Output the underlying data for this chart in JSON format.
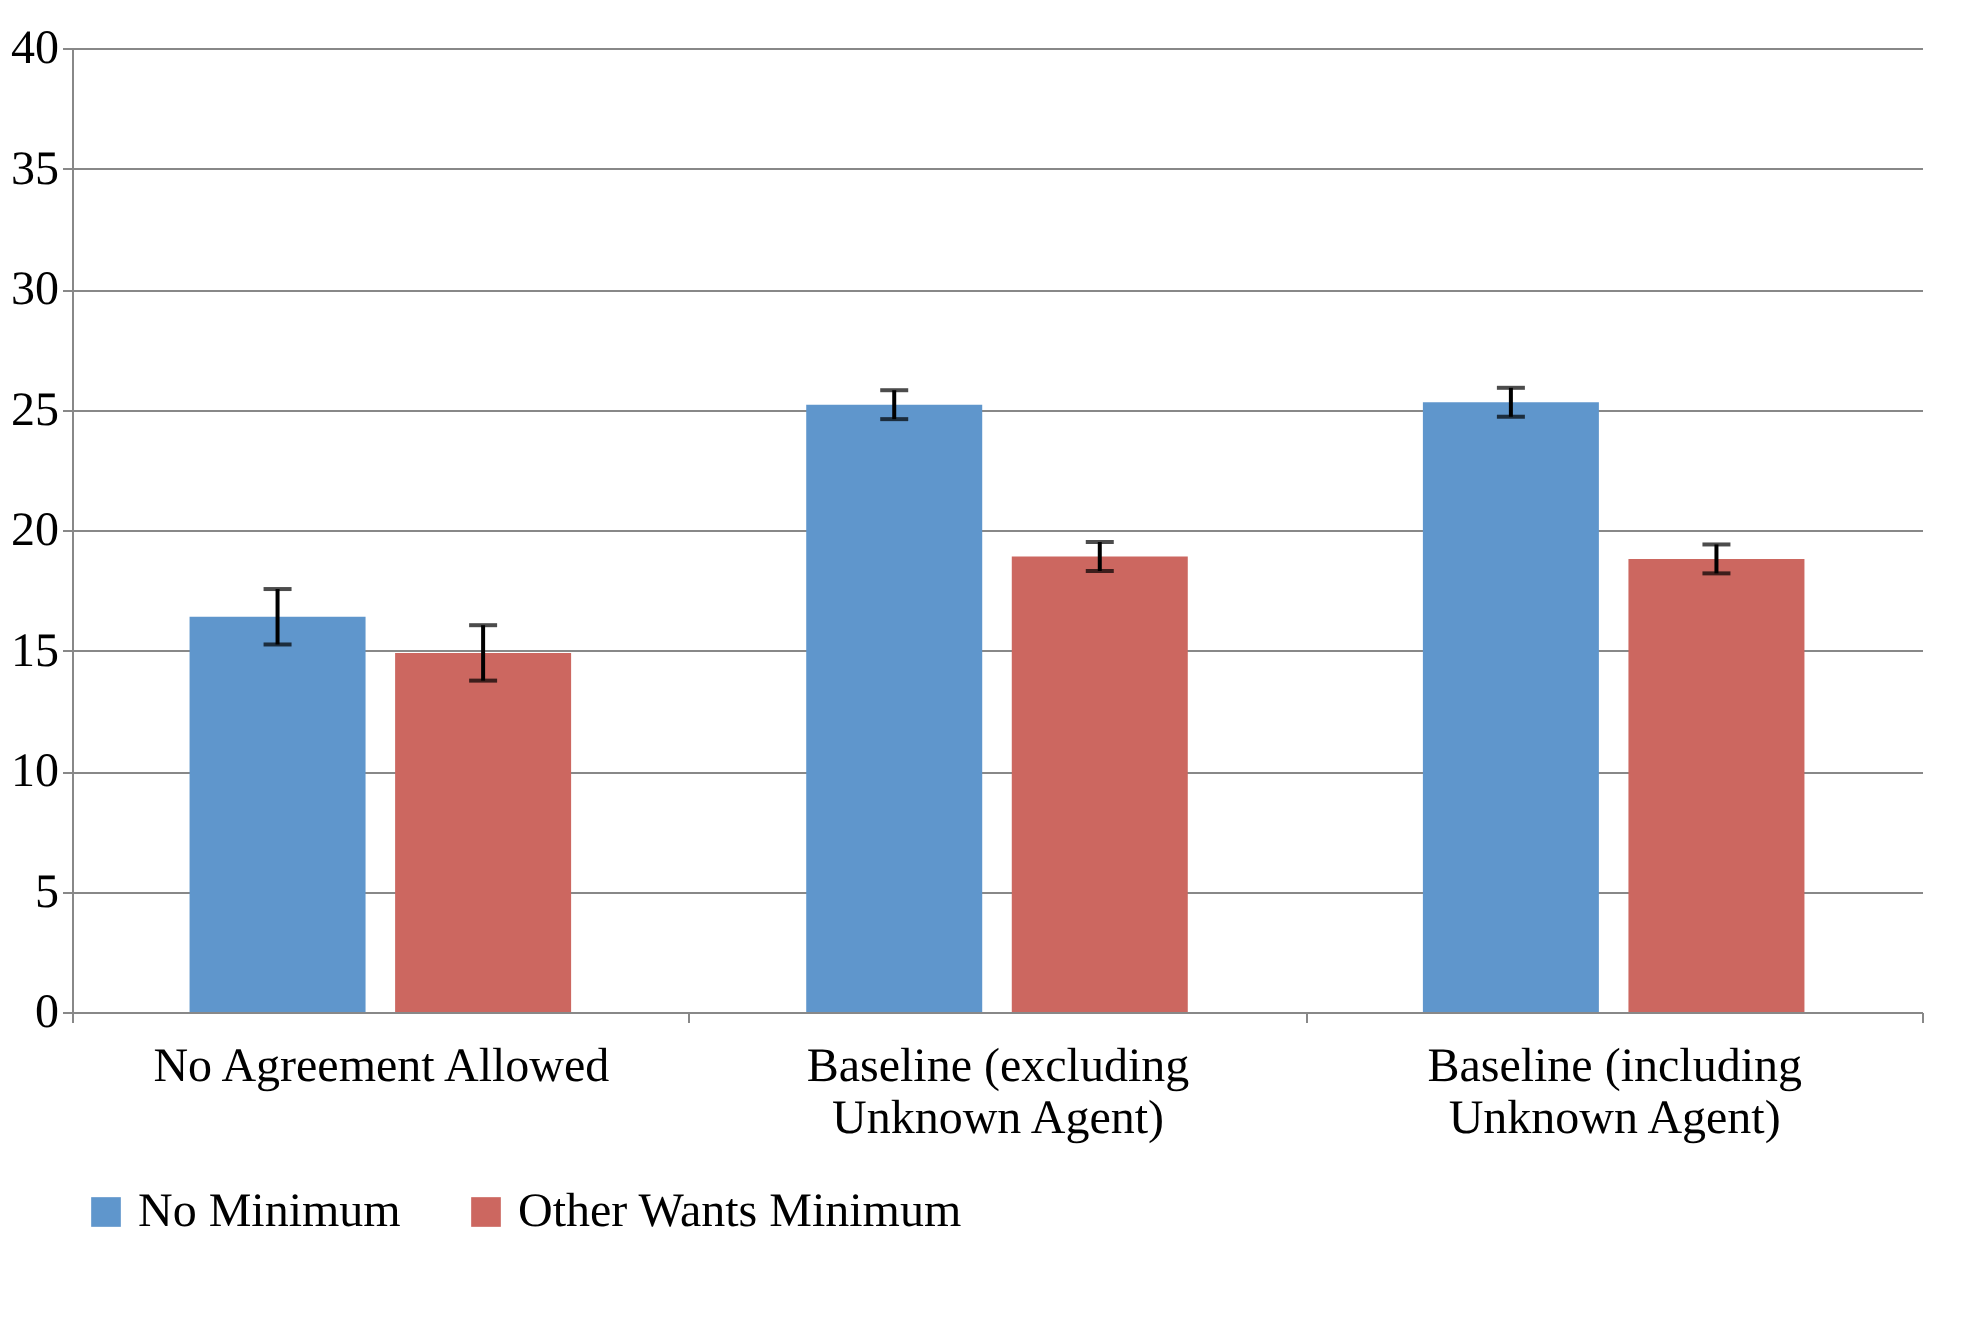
{
  "chart_data": {
    "type": "bar",
    "categories": [
      "No Agreement Allowed",
      "Baseline (excluding Unknown Agent)",
      "Baseline (including Unknown Agent)"
    ],
    "series": [
      {
        "name": "No Minimum",
        "color": "#5f96cc",
        "values": [
          16.4,
          25.2,
          25.3
        ],
        "errors": [
          1.15,
          0.6,
          0.6
        ]
      },
      {
        "name": "Other Wants Minimum",
        "color": "#cc6760",
        "values": [
          14.9,
          18.9,
          18.8
        ],
        "errors": [
          1.15,
          0.6,
          0.6
        ]
      }
    ],
    "ylim": [
      0,
      40
    ],
    "yticks": [
      0,
      5,
      10,
      15,
      20,
      25,
      30,
      35,
      40
    ],
    "grid": "y",
    "legend": "bottom"
  }
}
